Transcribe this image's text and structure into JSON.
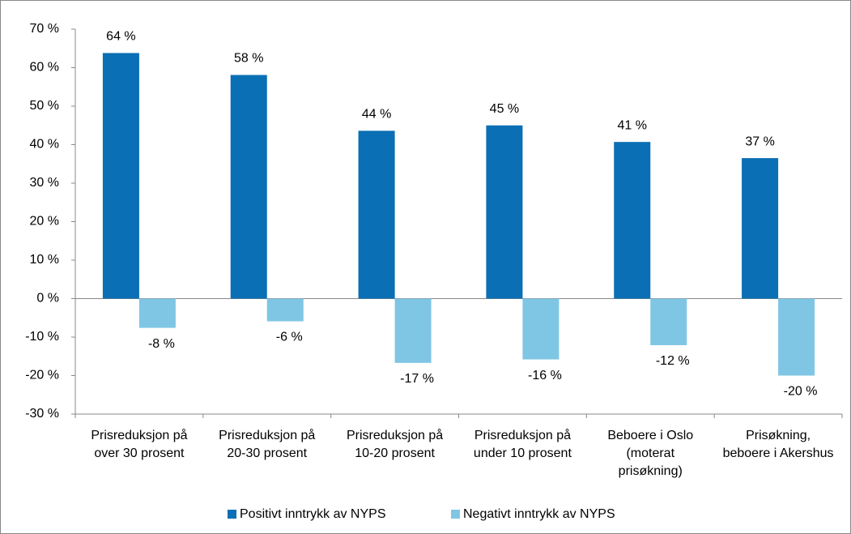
{
  "chart_data": {
    "type": "bar",
    "categories": [
      "Prisreduksjon på\nover 30 prosent",
      "Prisreduksjon på\n20-30 prosent",
      "Prisreduksjon på\n10-20 prosent",
      "Prisreduksjon på\nunder 10 prosent",
      "Beboere i Oslo\n(moterat\nprisøkning)",
      "Prisøkning,\nbeboere i Akershus"
    ],
    "series": [
      {
        "name": "Positivt inntrykk av NYPS",
        "color": "#0a6fb4",
        "values": [
          63.8,
          58.1,
          43.6,
          45.0,
          40.7,
          36.5
        ],
        "value_labels": [
          "64 %",
          "58 %",
          "44 %",
          "45 %",
          "41 %",
          "37 %"
        ]
      },
      {
        "name": "Negativt inntrykk av NYPS",
        "color": "#7fc6e4",
        "values": [
          -7.6,
          -5.9,
          -16.7,
          -15.8,
          -12.1,
          -20.0
        ],
        "value_labels": [
          "-8 %",
          "-6 %",
          "-17 %",
          "-16 %",
          "-12 %",
          "-20 %"
        ]
      }
    ],
    "ylim": [
      -30,
      70
    ],
    "yticks": [
      {
        "value": -30,
        "label": "-30 %"
      },
      {
        "value": -20,
        "label": "-20 %"
      },
      {
        "value": -10,
        "label": "-10 %"
      },
      {
        "value": 0,
        "label": "0 %"
      },
      {
        "value": 10,
        "label": "10 %"
      },
      {
        "value": 20,
        "label": "20 %"
      },
      {
        "value": 30,
        "label": "30 %"
      },
      {
        "value": 40,
        "label": "40 %"
      },
      {
        "value": 50,
        "label": "50 %"
      },
      {
        "value": 60,
        "label": "60 %"
      },
      {
        "value": 70,
        "label": "70 %"
      }
    ],
    "legend": "bottom"
  }
}
